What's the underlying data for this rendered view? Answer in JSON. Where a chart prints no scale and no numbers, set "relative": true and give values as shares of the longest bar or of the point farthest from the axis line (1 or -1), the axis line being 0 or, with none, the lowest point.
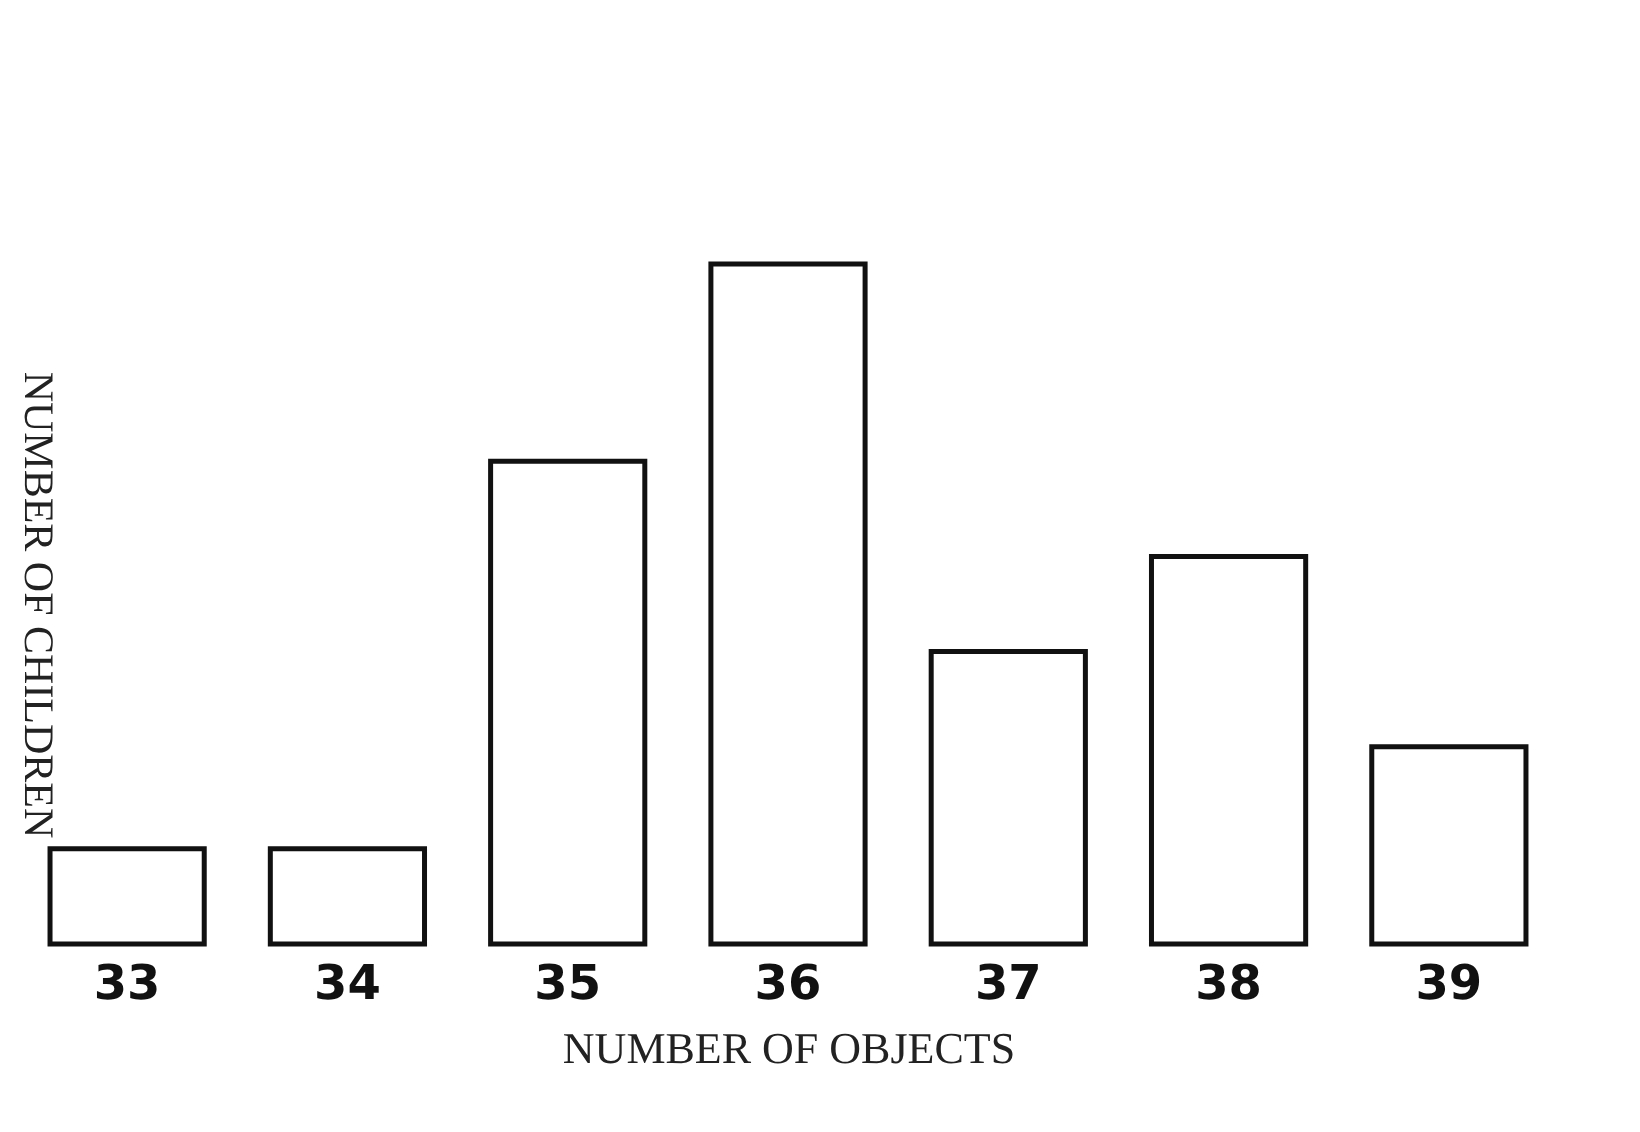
{
  "chart_data": {
    "type": "bar",
    "relative": true,
    "xlabel": "NUMBER OF OBJECTS",
    "ylabel": "NUMBER OF CHILDREN",
    "categories": [
      "33",
      "34",
      "35",
      "36",
      "37",
      "38",
      "39"
    ],
    "values": [
      0.14,
      0.14,
      0.71,
      1,
      0.43,
      0.57,
      0.29
    ],
    "color": "#ffffff"
  }
}
